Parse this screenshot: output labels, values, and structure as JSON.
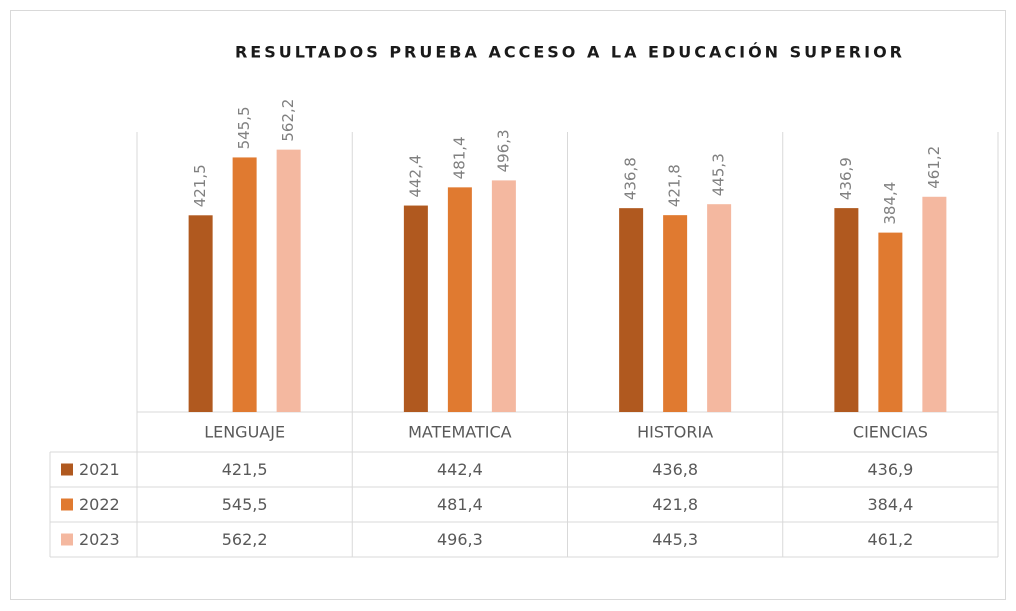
{
  "chart_data": {
    "type": "bar",
    "title": "RESULTADOS PRUEBA ACCESO A LA EDUCACIÓN  SUPERIOR",
    "categories": [
      "LENGUAJE",
      "MATEMATICA",
      "HISTORIA",
      "CIENCIAS"
    ],
    "series": [
      {
        "name": "2021",
        "color": "#b0591f",
        "values": [
          421.5,
          442.4,
          436.8,
          436.9
        ],
        "value_labels": [
          "421,5",
          "442,4",
          "436,8",
          "436,9"
        ]
      },
      {
        "name": "2022",
        "color": "#e07a30",
        "values": [
          545.5,
          481.4,
          421.8,
          384.4
        ],
        "value_labels": [
          "545,5",
          "481,4",
          "421,8",
          "384,4"
        ]
      },
      {
        "name": "2023",
        "color": "#f4b8a0",
        "values": [
          562.2,
          496.3,
          445.3,
          461.2
        ],
        "value_labels": [
          "562,2",
          "496,3",
          "445,3",
          "461,2"
        ]
      }
    ],
    "ylim": [
      0,
      600
    ],
    "data_table": true
  }
}
